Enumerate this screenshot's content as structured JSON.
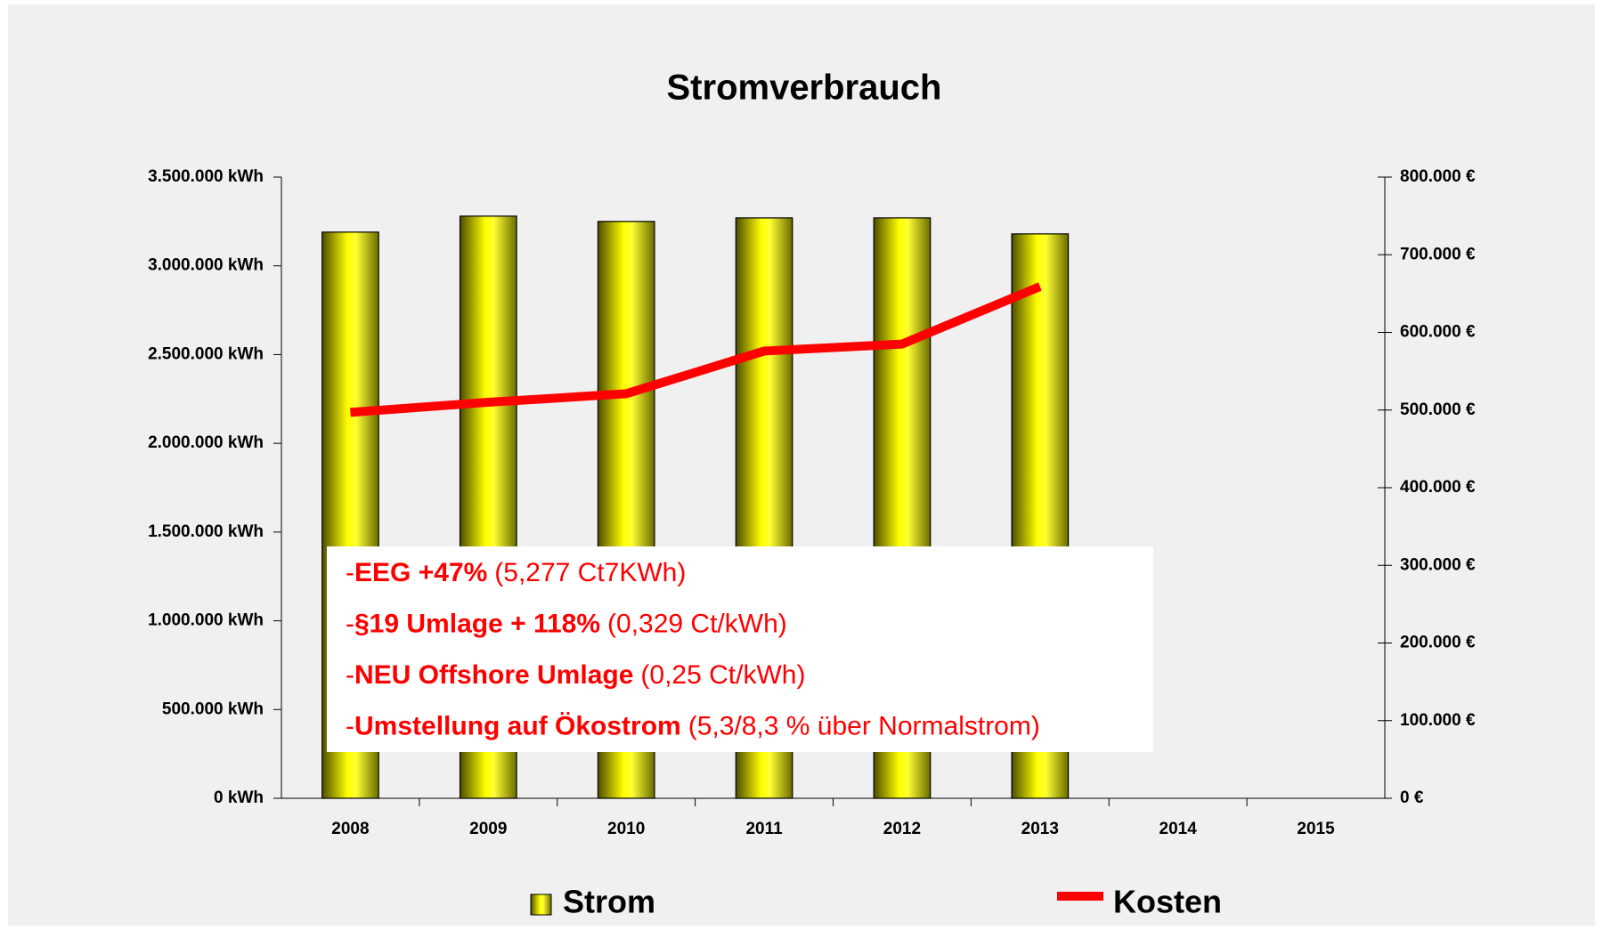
{
  "chart_data": {
    "type": "bar",
    "title": "Stromverbrauch",
    "categories": [
      "2008",
      "2009",
      "2010",
      "2011",
      "2012",
      "2013",
      "2014",
      "2015"
    ],
    "series": [
      {
        "name": "Strom",
        "type": "bar",
        "color": "#ffff00",
        "values": [
          3190000,
          3280000,
          3250000,
          3270000,
          3270000,
          3180000,
          null,
          null
        ]
      },
      {
        "name": "Kosten",
        "type": "line",
        "axis": "y2",
        "color": "#ff0000",
        "values": [
          497000,
          510000,
          521000,
          576000,
          585000,
          659000,
          null,
          null
        ]
      }
    ],
    "ylim": [
      0,
      3500000
    ],
    "yticks": [
      {
        "value": 0,
        "label": "0 kWh"
      },
      {
        "value": 500000,
        "label": "500.000 kWh"
      },
      {
        "value": 1000000,
        "label": "1.000.000 kWh"
      },
      {
        "value": 1500000,
        "label": "1.500.000 kWh"
      },
      {
        "value": 2000000,
        "label": "2.000.000 kWh"
      },
      {
        "value": 2500000,
        "label": "2.500.000 kWh"
      },
      {
        "value": 3000000,
        "label": "3.000.000 kWh"
      },
      {
        "value": 3500000,
        "label": "3.500.000 kWh"
      }
    ],
    "y2lim": [
      0,
      800000
    ],
    "y2ticks": [
      {
        "value": 0,
        "label": "0 €"
      },
      {
        "value": 100000,
        "label": "100.000 €"
      },
      {
        "value": 200000,
        "label": "200.000 €"
      },
      {
        "value": 300000,
        "label": "300.000 €"
      },
      {
        "value": 400000,
        "label": "400.000 €"
      },
      {
        "value": 500000,
        "label": "500.000 €"
      },
      {
        "value": 600000,
        "label": "600.000 €"
      },
      {
        "value": 700000,
        "label": "700.000 €"
      },
      {
        "value": 800000,
        "label": "800.000 €"
      }
    ],
    "grid": false,
    "legend": "bottom",
    "annotations": [
      {
        "prefix": "-",
        "bold": "EEG +47%",
        "normal": "(5,277 Ct7KWh)"
      },
      {
        "prefix": "-",
        "bold": "§19 Umlage + 118%",
        "normal": "(0,329 Ct/kWh)"
      },
      {
        "prefix": "-",
        "bold": "NEU Offshore Umlage",
        "normal": "(0,25 Ct/kWh)"
      },
      {
        "prefix": "-",
        "bold": "Umstellung auf Ökostrom",
        "normal": "(5,3/8,3 % über Normalstrom)"
      }
    ]
  }
}
